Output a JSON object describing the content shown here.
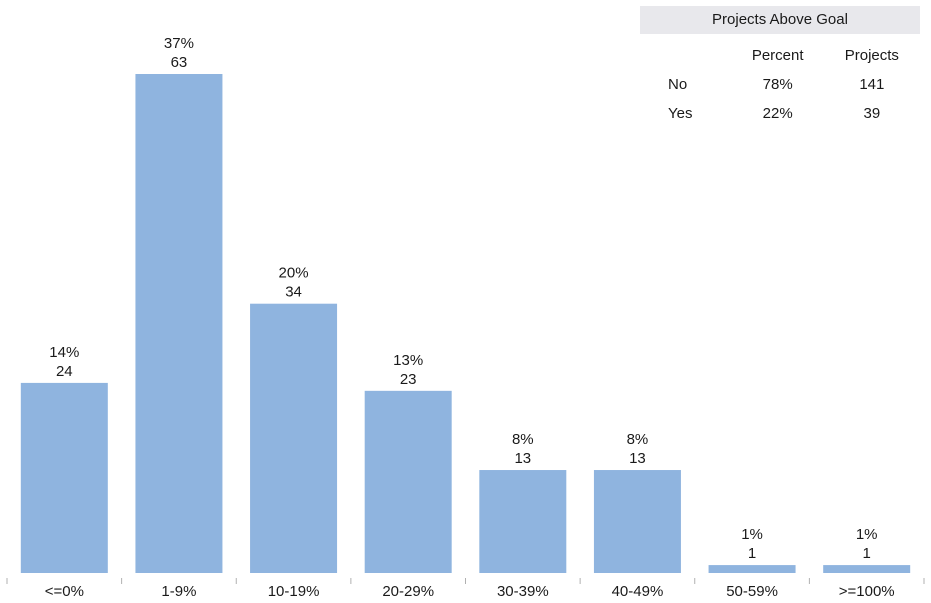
{
  "chart_data": {
    "type": "bar",
    "categories": [
      "<=0%",
      "1-9%",
      "10-19%",
      "20-29%",
      "30-39%",
      "40-49%",
      "50-59%",
      ">=100%"
    ],
    "values": [
      24,
      63,
      34,
      23,
      13,
      13,
      1,
      1
    ],
    "percent_labels": [
      "14%",
      "37%",
      "20%",
      "13%",
      "8%",
      "8%",
      "1%",
      "1%"
    ],
    "bar_color": "#8fb4df",
    "ylim": [
      0,
      63
    ],
    "grid": false,
    "xlabel": "",
    "ylabel": ""
  },
  "summary": {
    "title": "Projects Above Goal",
    "headers": [
      "",
      "Percent",
      "Projects"
    ],
    "rows": [
      {
        "label": "No",
        "percent": "78%",
        "projects": "141"
      },
      {
        "label": "Yes",
        "percent": "22%",
        "projects": "39"
      }
    ]
  }
}
